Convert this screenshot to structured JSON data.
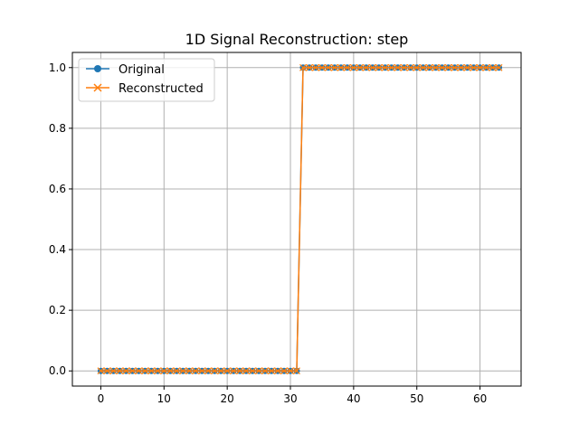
{
  "chart_data": {
    "type": "line",
    "title": "1D Signal Reconstruction: step",
    "xlabel": "",
    "ylabel": "",
    "xlim": [
      -4.5,
      66.5
    ],
    "ylim": [
      -0.05,
      1.05
    ],
    "xticks": [
      0,
      10,
      20,
      30,
      40,
      50,
      60
    ],
    "yticks": [
      0.0,
      0.2,
      0.4,
      0.6,
      0.8,
      1.0
    ],
    "xtick_labels": [
      "0",
      "10",
      "20",
      "30",
      "40",
      "50",
      "60"
    ],
    "ytick_labels": [
      "0.0",
      "0.2",
      "0.4",
      "0.6",
      "0.8",
      "1.0"
    ],
    "grid": true,
    "legend_position": "top-left",
    "series": [
      {
        "name": "Original",
        "color": "#1f77b4",
        "marker": "circle",
        "x": [
          0,
          1,
          2,
          3,
          4,
          5,
          6,
          7,
          8,
          9,
          10,
          11,
          12,
          13,
          14,
          15,
          16,
          17,
          18,
          19,
          20,
          21,
          22,
          23,
          24,
          25,
          26,
          27,
          28,
          29,
          30,
          31,
          32,
          33,
          34,
          35,
          36,
          37,
          38,
          39,
          40,
          41,
          42,
          43,
          44,
          45,
          46,
          47,
          48,
          49,
          50,
          51,
          52,
          53,
          54,
          55,
          56,
          57,
          58,
          59,
          60,
          61,
          62,
          63
        ],
        "y": [
          0,
          0,
          0,
          0,
          0,
          0,
          0,
          0,
          0,
          0,
          0,
          0,
          0,
          0,
          0,
          0,
          0,
          0,
          0,
          0,
          0,
          0,
          0,
          0,
          0,
          0,
          0,
          0,
          0,
          0,
          0,
          0,
          1,
          1,
          1,
          1,
          1,
          1,
          1,
          1,
          1,
          1,
          1,
          1,
          1,
          1,
          1,
          1,
          1,
          1,
          1,
          1,
          1,
          1,
          1,
          1,
          1,
          1,
          1,
          1,
          1,
          1,
          1,
          1
        ]
      },
      {
        "name": "Reconstructed",
        "color": "#ff7f0e",
        "marker": "x",
        "x": [
          0,
          1,
          2,
          3,
          4,
          5,
          6,
          7,
          8,
          9,
          10,
          11,
          12,
          13,
          14,
          15,
          16,
          17,
          18,
          19,
          20,
          21,
          22,
          23,
          24,
          25,
          26,
          27,
          28,
          29,
          30,
          31,
          32,
          33,
          34,
          35,
          36,
          37,
          38,
          39,
          40,
          41,
          42,
          43,
          44,
          45,
          46,
          47,
          48,
          49,
          50,
          51,
          52,
          53,
          54,
          55,
          56,
          57,
          58,
          59,
          60,
          61,
          62,
          63
        ],
        "y": [
          0,
          0,
          0,
          0,
          0,
          0,
          0,
          0,
          0,
          0,
          0,
          0,
          0,
          0,
          0,
          0,
          0,
          0,
          0,
          0,
          0,
          0,
          0,
          0,
          0,
          0,
          0,
          0,
          0,
          0,
          0,
          0,
          1,
          1,
          1,
          1,
          1,
          1,
          1,
          1,
          1,
          1,
          1,
          1,
          1,
          1,
          1,
          1,
          1,
          1,
          1,
          1,
          1,
          1,
          1,
          1,
          1,
          1,
          1,
          1,
          1,
          1,
          1,
          1
        ]
      }
    ]
  }
}
